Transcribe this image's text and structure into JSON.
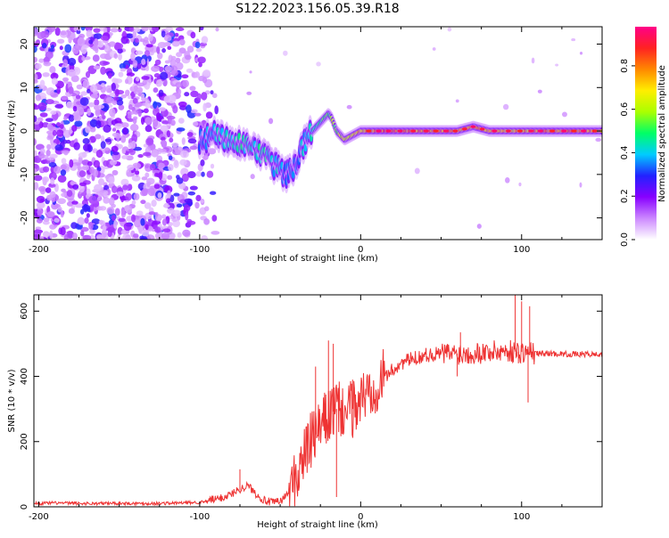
{
  "title": "S122.2023.156.05.39.R18",
  "chart_data": [
    {
      "type": "heatmap",
      "xlabel": "Height of straight line (km)",
      "ylabel": "Frequency (Hz)",
      "xlim": [
        -203,
        150
      ],
      "ylim": [
        -25,
        24
      ],
      "x_ticks": [
        -200,
        -100,
        0,
        100
      ],
      "x_tick_labels": [
        "-200",
        "-100",
        "0",
        "100"
      ],
      "y_ticks": [
        -20,
        -10,
        0,
        10,
        20
      ],
      "y_tick_labels": [
        "-20",
        "-10",
        "0",
        "10",
        "20"
      ],
      "colorbar": {
        "label": "Normalized spectral amplitude",
        "range": [
          0,
          0.98
        ],
        "ticks": [
          0,
          0.2,
          0.4,
          0.6,
          0.8
        ],
        "tick_labels": [
          "0.0",
          "0.2",
          "0.4",
          "0.6",
          "0.8"
        ],
        "colormap": [
          "#ffffff",
          "#cc88ff",
          "#8800ff",
          "#2222ff",
          "#00ccff",
          "#00ff66",
          "#aaff00",
          "#ffee00",
          "#ff8800",
          "#ff2222",
          "#ff0088"
        ]
      },
      "ridge": {
        "x": [
          -100,
          -90,
          -80,
          -70,
          -60,
          -50,
          -45,
          -40,
          -35,
          -30,
          -25,
          -20,
          -18,
          -15,
          -10,
          -5,
          0,
          10,
          20,
          30,
          40,
          50,
          60,
          70,
          80,
          90,
          100,
          110,
          120,
          130,
          140,
          150
        ],
        "y": [
          -2,
          -1,
          -2,
          -4,
          -6,
          -9,
          -10,
          -7,
          -3,
          0,
          2,
          4,
          3,
          0,
          -2,
          -1,
          0,
          0,
          0,
          0,
          0,
          0,
          0,
          1,
          0,
          0,
          0,
          0,
          0,
          0,
          0,
          0
        ],
        "amplitude": [
          0.35,
          0.4,
          0.45,
          0.45,
          0.45,
          0.4,
          0.35,
          0.35,
          0.4,
          0.45,
          0.5,
          0.55,
          0.55,
          0.6,
          0.65,
          0.7,
          0.75,
          0.85,
          0.85,
          0.85,
          0.85,
          0.8,
          0.8,
          0.8,
          0.75,
          0.75,
          0.75,
          0.8,
          0.85,
          0.85,
          0.85,
          0.8
        ]
      },
      "noise_region_x": [
        -203,
        -100
      ]
    },
    {
      "type": "line",
      "xlabel": "Height of straight line (km)",
      "ylabel": "SNR (10 * v/v)",
      "xlim": [
        -203,
        150
      ],
      "ylim": [
        0,
        650
      ],
      "x_ticks": [
        -200,
        -100,
        0,
        100
      ],
      "x_tick_labels": [
        "-200",
        "-100",
        "0",
        "100"
      ],
      "y_ticks": [
        0,
        200,
        400,
        600
      ],
      "y_tick_labels": [
        "0",
        "200",
        "400",
        "600"
      ],
      "color": "#ee3333",
      "series": [
        {
          "x": [
            -203,
            -190,
            -170,
            -150,
            -130,
            -110,
            -100,
            -90,
            -85,
            -80,
            -75,
            -70,
            -65,
            -60,
            -55,
            -50,
            -45,
            -40,
            -35,
            -30,
            -25,
            -20,
            -15,
            -10,
            -5,
            0,
            5,
            10,
            15,
            20,
            25,
            30,
            40,
            50,
            60,
            70,
            80,
            90,
            100,
            110,
            120,
            130,
            140,
            150
          ],
          "y": [
            10,
            12,
            10,
            11,
            10,
            12,
            14,
            18,
            25,
            35,
            50,
            60,
            35,
            15,
            8,
            12,
            35,
            90,
            160,
            210,
            240,
            280,
            300,
            290,
            300,
            330,
            355,
            380,
            400,
            420,
            440,
            450,
            465,
            470,
            470,
            472,
            475,
            478,
            475,
            470,
            470,
            468,
            468,
            467
          ]
        }
      ],
      "spikes": [
        {
          "x": -75,
          "y": 115
        },
        {
          "x": -28,
          "y": 430
        },
        {
          "x": -20,
          "y": 510
        },
        {
          "x": -17,
          "y": 500
        },
        {
          "x": -15,
          "y": 30
        },
        {
          "x": -5,
          "y": 390
        },
        {
          "x": 60,
          "y": 400
        },
        {
          "x": 62,
          "y": 535
        },
        {
          "x": 96,
          "y": 650
        },
        {
          "x": 98,
          "y": 440
        },
        {
          "x": 100,
          "y": 630
        },
        {
          "x": 104,
          "y": 320
        },
        {
          "x": 105,
          "y": 615
        }
      ]
    }
  ]
}
